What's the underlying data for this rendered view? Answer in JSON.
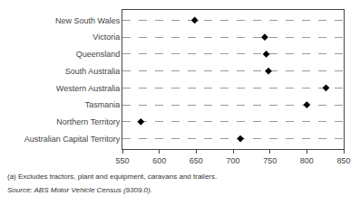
{
  "chart_data": {
    "type": "scatter",
    "categories": [
      "New South Wales",
      "Victoria",
      "Queensland",
      "South Australia",
      "Western Australia",
      "Tasmania",
      "Northern Territory",
      "Australian Capital Territory"
    ],
    "values": [
      648,
      743,
      745,
      748,
      826,
      800,
      575,
      710
    ],
    "color": "#000000",
    "marker": "diamond",
    "xlim": [
      550,
      850
    ],
    "xticks": [
      550,
      600,
      650,
      700,
      750,
      800,
      850
    ],
    "grid": true,
    "annotations": [
      "(a) Excludes tractors, plant and equipment, caravans and trailers.",
      "Source: ABS Motor Vehicle Census (9309.0)."
    ]
  }
}
